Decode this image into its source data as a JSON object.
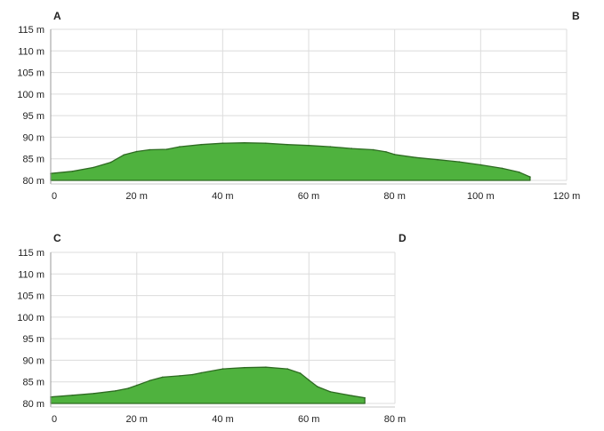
{
  "colors": {
    "fill": "#4fb23e",
    "stroke": "#2e6b22",
    "grid": "#dcdcdc",
    "axis": "#9a9a9a",
    "text": "#222222"
  },
  "chart_data": [
    {
      "type": "area",
      "xlabel": "",
      "ylabel": "",
      "xlim": [
        0,
        120
      ],
      "ylim": [
        80,
        115
      ],
      "x_ticks": [
        0,
        20,
        40,
        60,
        80,
        100,
        120
      ],
      "x_tick_labels": [
        "0",
        "20 m",
        "40 m",
        "60 m",
        "80 m",
        "100 m",
        "120 m"
      ],
      "y_ticks": [
        80,
        85,
        90,
        95,
        100,
        105,
        110,
        115
      ],
      "y_tick_labels": [
        "80 m",
        "85 m",
        "90 m",
        "95 m",
        "100 m",
        "105 m",
        "110 m",
        "115 m"
      ],
      "start_label": "A",
      "end_label": "B",
      "grid": true,
      "series": [
        {
          "x": [
            0,
            5,
            10,
            14,
            17,
            20,
            23,
            27,
            30,
            35,
            40,
            45,
            50,
            55,
            60,
            65,
            70,
            75,
            78,
            80,
            85,
            90,
            95,
            100,
            105,
            109,
            111.5
          ],
          "y": [
            81.6,
            82.1,
            83.0,
            84.2,
            85.9,
            86.7,
            87.1,
            87.2,
            87.8,
            88.3,
            88.6,
            88.7,
            88.6,
            88.3,
            88.1,
            87.8,
            87.4,
            87.1,
            86.6,
            86.0,
            85.3,
            84.8,
            84.3,
            83.6,
            82.8,
            81.9,
            80.8
          ]
        }
      ]
    },
    {
      "type": "area",
      "xlabel": "",
      "ylabel": "",
      "xlim": [
        0,
        80
      ],
      "ylim": [
        80,
        115
      ],
      "x_ticks": [
        0,
        20,
        40,
        60,
        80
      ],
      "x_tick_labels": [
        "0",
        "20 m",
        "40 m",
        "60 m",
        "80 m"
      ],
      "y_ticks": [
        80,
        85,
        90,
        95,
        100,
        105,
        110,
        115
      ],
      "y_tick_labels": [
        "80 m",
        "85 m",
        "90 m",
        "95 m",
        "100 m",
        "105 m",
        "110 m",
        "115 m"
      ],
      "start_label": "C",
      "end_label": "D",
      "grid": true,
      "series": [
        {
          "x": [
            0,
            5,
            10,
            15,
            18,
            20,
            23,
            26,
            30,
            33,
            35,
            40,
            45,
            50,
            55,
            58,
            60,
            62,
            65,
            70,
            73
          ],
          "y": [
            81.5,
            81.9,
            82.3,
            82.9,
            83.5,
            84.2,
            85.3,
            86.1,
            86.4,
            86.7,
            87.1,
            88.0,
            88.3,
            88.4,
            88.0,
            87.0,
            85.4,
            83.9,
            82.7,
            81.8,
            81.3
          ]
        }
      ]
    }
  ]
}
